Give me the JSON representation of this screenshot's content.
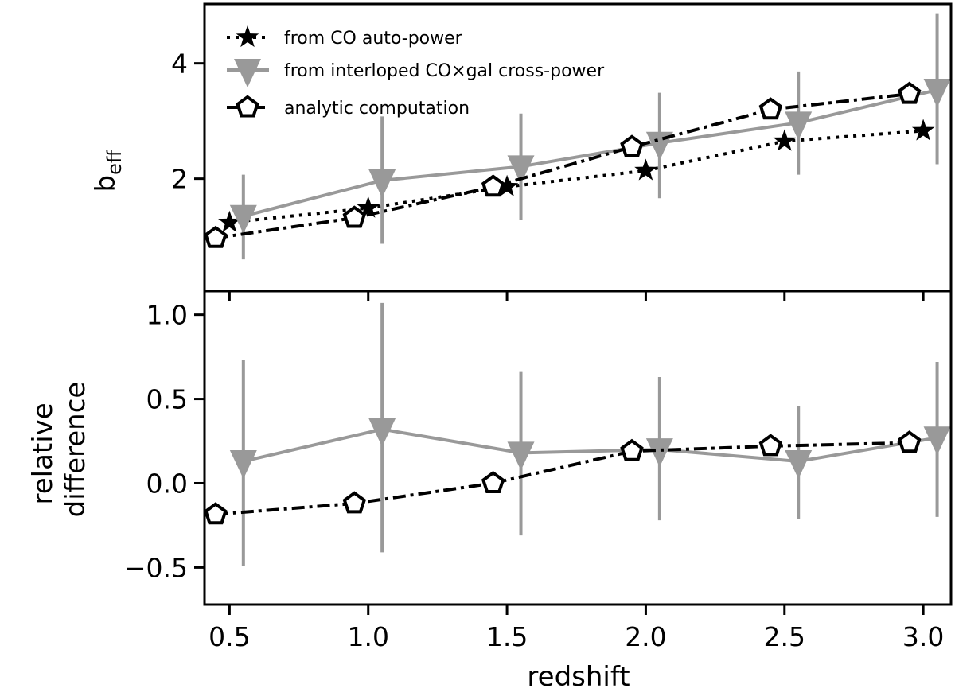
{
  "chart_data": [
    {
      "type": "line",
      "panel": "top",
      "ylabel": "b",
      "ylabel_sub": "eff",
      "xlim": [
        0.41,
        3.1
      ],
      "ylim": [
        0.05,
        5.03
      ],
      "yticks": [
        2,
        4
      ],
      "ytick_labels": [
        "2",
        "4"
      ],
      "grid": false,
      "legend_position": "top-left",
      "series": [
        {
          "name": "from CO auto-power",
          "marker": "star",
          "line": "dotted",
          "color": "#000000",
          "x": [
            0.5,
            1.0,
            1.5,
            2.0,
            2.5,
            3.0
          ],
          "y": [
            1.24,
            1.49,
            1.86,
            2.14,
            2.65,
            2.83
          ]
        },
        {
          "name": "from interloped CO×gal cross-power",
          "marker": "triangle-down",
          "line": "solid",
          "color": "#999999",
          "x": [
            0.55,
            1.05,
            1.55,
            2.05,
            2.55,
            3.05
          ],
          "y": [
            1.35,
            1.97,
            2.21,
            2.62,
            2.97,
            3.54
          ],
          "err_high": [
            2.07,
            3.08,
            3.13,
            3.49,
            3.86,
            4.87
          ],
          "err_low": [
            0.6,
            0.87,
            1.28,
            1.66,
            2.07,
            2.25
          ]
        },
        {
          "name": "analytic computation",
          "marker": "pentagon-open",
          "line": "dashdot",
          "color": "#000000",
          "x": [
            0.45,
            0.95,
            1.45,
            1.95,
            2.45,
            2.95
          ],
          "y": [
            0.97,
            1.32,
            1.86,
            2.55,
            3.2,
            3.47
          ]
        }
      ]
    },
    {
      "type": "line",
      "panel": "bottom",
      "xlabel": "redshift",
      "ylabel_lines": [
        "relative",
        "difference"
      ],
      "xlim": [
        0.41,
        3.1
      ],
      "ylim": [
        -0.72,
        1.14
      ],
      "xticks": [
        0.5,
        1.0,
        1.5,
        2.0,
        2.5,
        3.0
      ],
      "xtick_labels": [
        "0.5",
        "1.0",
        "1.5",
        "2.0",
        "2.5",
        "3.0"
      ],
      "yticks": [
        1.0,
        0.5,
        0.0,
        -0.5
      ],
      "ytick_labels": [
        "1.0",
        "0.5",
        "0.0",
        "−0.5"
      ],
      "grid": false,
      "series": [
        {
          "marker": "triangle-down",
          "line": "solid",
          "color": "#999999",
          "x": [
            0.55,
            1.05,
            1.55,
            2.05,
            2.55,
            3.05
          ],
          "y": [
            0.13,
            0.32,
            0.18,
            0.2,
            0.13,
            0.27
          ],
          "err_high": [
            0.73,
            1.07,
            0.66,
            0.63,
            0.46,
            0.72
          ],
          "err_low": [
            -0.49,
            -0.41,
            -0.31,
            -0.22,
            -0.21,
            -0.2
          ]
        },
        {
          "marker": "pentagon-open",
          "line": "dashdot",
          "color": "#000000",
          "x": [
            0.45,
            0.95,
            1.45,
            1.95,
            2.45,
            2.95
          ],
          "y": [
            -0.185,
            -0.12,
            0.0,
            0.19,
            0.22,
            0.24
          ]
        }
      ]
    }
  ]
}
